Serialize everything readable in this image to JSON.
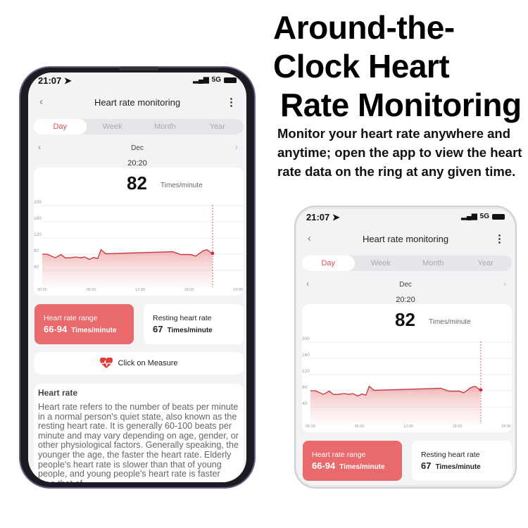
{
  "headline": [
    "Around-the-",
    "Clock Heart",
    "Rate Monitoring"
  ],
  "description": "Monitor your heart rate anywhere and anytime; open the app to view the heart rate data on the ring at any given time.",
  "app": {
    "status": {
      "time": "21:07",
      "network": "5G"
    },
    "title": "Heart rate monitoring",
    "tabs": [
      "Day",
      "Week",
      "Month",
      "Year"
    ],
    "active_tab": "Day",
    "period": "Dec",
    "selected_time": "20:20",
    "current_value": "82",
    "unit": "Times/minute",
    "range_card": {
      "label": "Heart rate range",
      "value": "66-94",
      "unit": "Times/minute"
    },
    "resting_card": {
      "label": "Resting heart rate",
      "value": "67",
      "unit": "Times/minute"
    },
    "measure_label": "Click on Measure",
    "info": {
      "title": "Heart rate",
      "body": "Heart rate refers to the number of beats per minute in a normal person's quiet state, also known as the resting heart rate. It is generally 60-100 beats per minute and may vary depending on age, gender, or other physiological factors. Generally speaking, the younger the age, the faster the heart rate. Elderly people's heart rate is slower than that of young people, and young people's heart rate is faster than that of ..."
    },
    "colors": {
      "accent": "#d9534f",
      "line": "#c9343a",
      "range_card": "#e86a6c"
    }
  },
  "chart_data": {
    "type": "area",
    "x_ticks": [
      "00:00",
      "06:00",
      "12:00",
      "18:00",
      "24:00"
    ],
    "y_ticks": [
      40,
      80,
      120,
      160,
      200
    ],
    "ylim": [
      0,
      200
    ],
    "xlim_hours": [
      0,
      24
    ],
    "grid": true,
    "points": [
      [
        0,
        80
      ],
      [
        0.6,
        80
      ],
      [
        1.6,
        71
      ],
      [
        2.3,
        79
      ],
      [
        2.8,
        71
      ],
      [
        3.5,
        71
      ],
      [
        4.1,
        73
      ],
      [
        4.7,
        71
      ],
      [
        5.2,
        73
      ],
      [
        5.8,
        67
      ],
      [
        6.3,
        72
      ],
      [
        6.8,
        69
      ],
      [
        7.2,
        91
      ],
      [
        7.8,
        81
      ],
      [
        16,
        86
      ],
      [
        17,
        79
      ],
      [
        18.2,
        79
      ],
      [
        18.8,
        75
      ],
      [
        19.7,
        88
      ],
      [
        20.2,
        91
      ],
      [
        20.8,
        82
      ]
    ],
    "marker": {
      "time": "20:20",
      "value": 82
    }
  }
}
